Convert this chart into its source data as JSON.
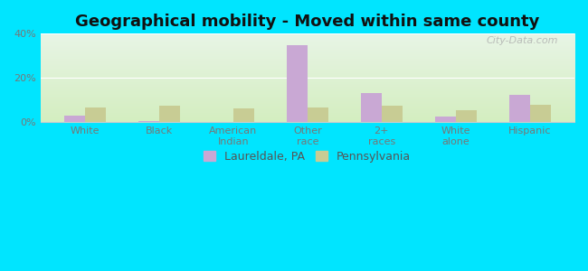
{
  "title": "Geographical mobility - Moved within same county",
  "categories": [
    "White",
    "Black",
    "American\nIndian",
    "Other\nrace",
    "2+\nraces",
    "White\nalone",
    "Hispanic"
  ],
  "laureldale_values": [
    3.0,
    0.5,
    0.0,
    35.0,
    13.0,
    2.5,
    12.5
  ],
  "pennsylvania_values": [
    6.5,
    7.5,
    6.0,
    6.5,
    7.5,
    5.5,
    8.0
  ],
  "laureldale_color": "#c9a8d4",
  "pennsylvania_color": "#c8cc94",
  "plot_bg_top": "#e8f5e6",
  "plot_bg_bottom": "#d4eec0",
  "outer_bg": "#00e5ff",
  "ylim": [
    0,
    40
  ],
  "yticks": [
    0,
    20,
    40
  ],
  "ytick_labels": [
    "0%",
    "20%",
    "40%"
  ],
  "watermark": "City-Data.com",
  "legend_labels": [
    "Laureldale, PA",
    "Pennsylvania"
  ],
  "bar_width": 0.28,
  "title_fontsize": 13,
  "tick_fontsize": 8,
  "legend_fontsize": 9
}
